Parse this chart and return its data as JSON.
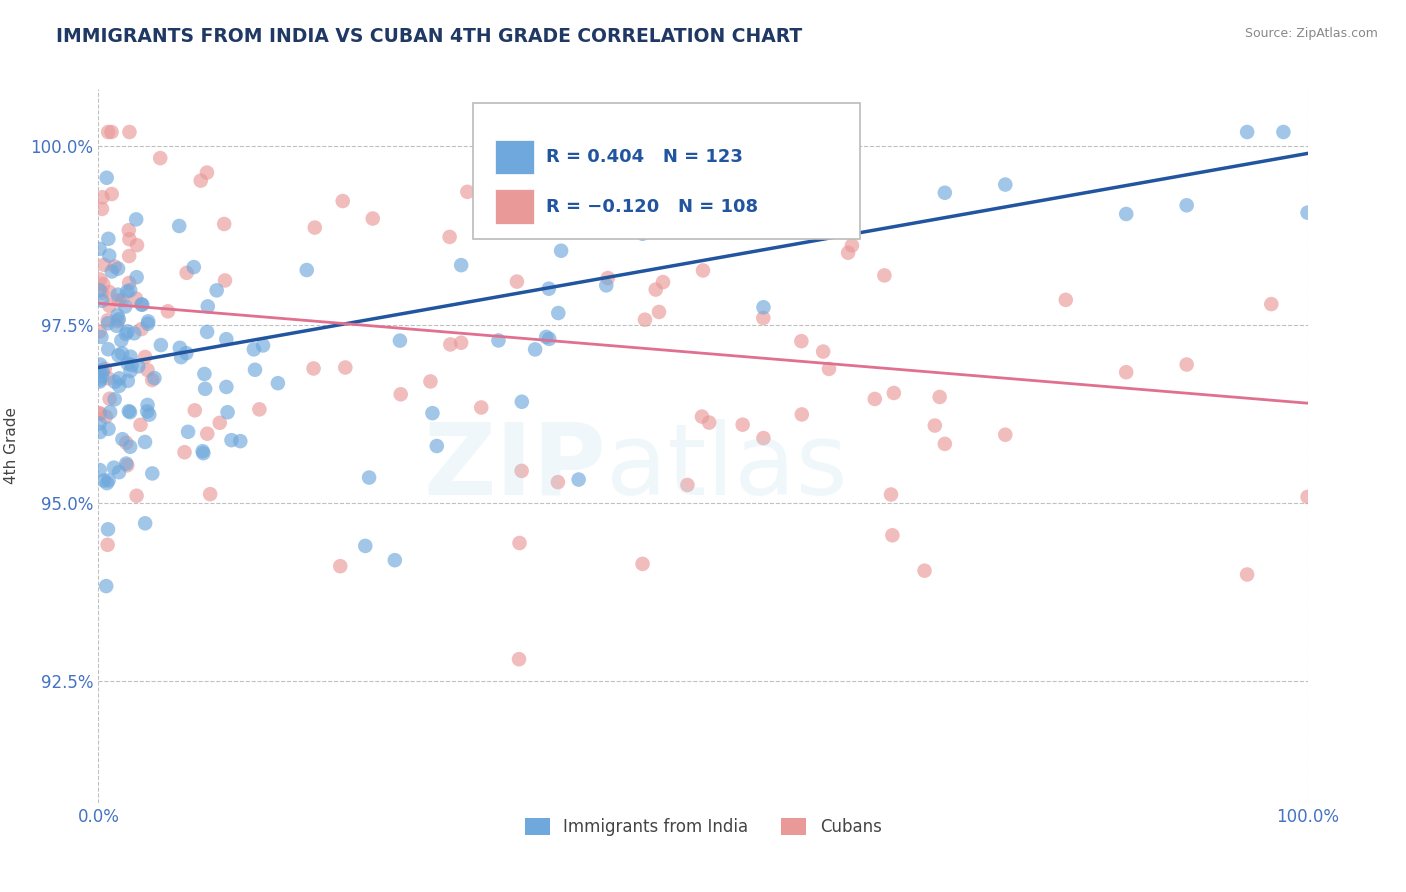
{
  "title": "IMMIGRANTS FROM INDIA VS CUBAN 4TH GRADE CORRELATION CHART",
  "source_text": "Source: ZipAtlas.com",
  "ylabel": "4th Grade",
  "xlim": [
    0.0,
    1.0
  ],
  "ylim": [
    0.908,
    1.008
  ],
  "yticks": [
    0.925,
    0.95,
    0.975,
    1.0
  ],
  "ytick_labels": [
    "92.5%",
    "95.0%",
    "97.5%",
    "100.0%"
  ],
  "xtick_labels": [
    "0.0%",
    "100.0%"
  ],
  "xticks": [
    0.0,
    1.0
  ],
  "india_color": "#6fa8dc",
  "cuba_color": "#ea9999",
  "india_R": 0.404,
  "india_N": 123,
  "cuba_R": -0.12,
  "cuba_N": 108,
  "background_color": "#ffffff",
  "grid_color": "#c0c0c0",
  "axis_label_color": "#4472c4",
  "title_color": "#1f3864",
  "india_line_color": "#2255a0",
  "cuba_line_color": "#e07090",
  "india_line_start_y": 0.969,
  "india_line_end_y": 0.999,
  "cuba_line_start_y": 0.978,
  "cuba_line_end_y": 0.964
}
